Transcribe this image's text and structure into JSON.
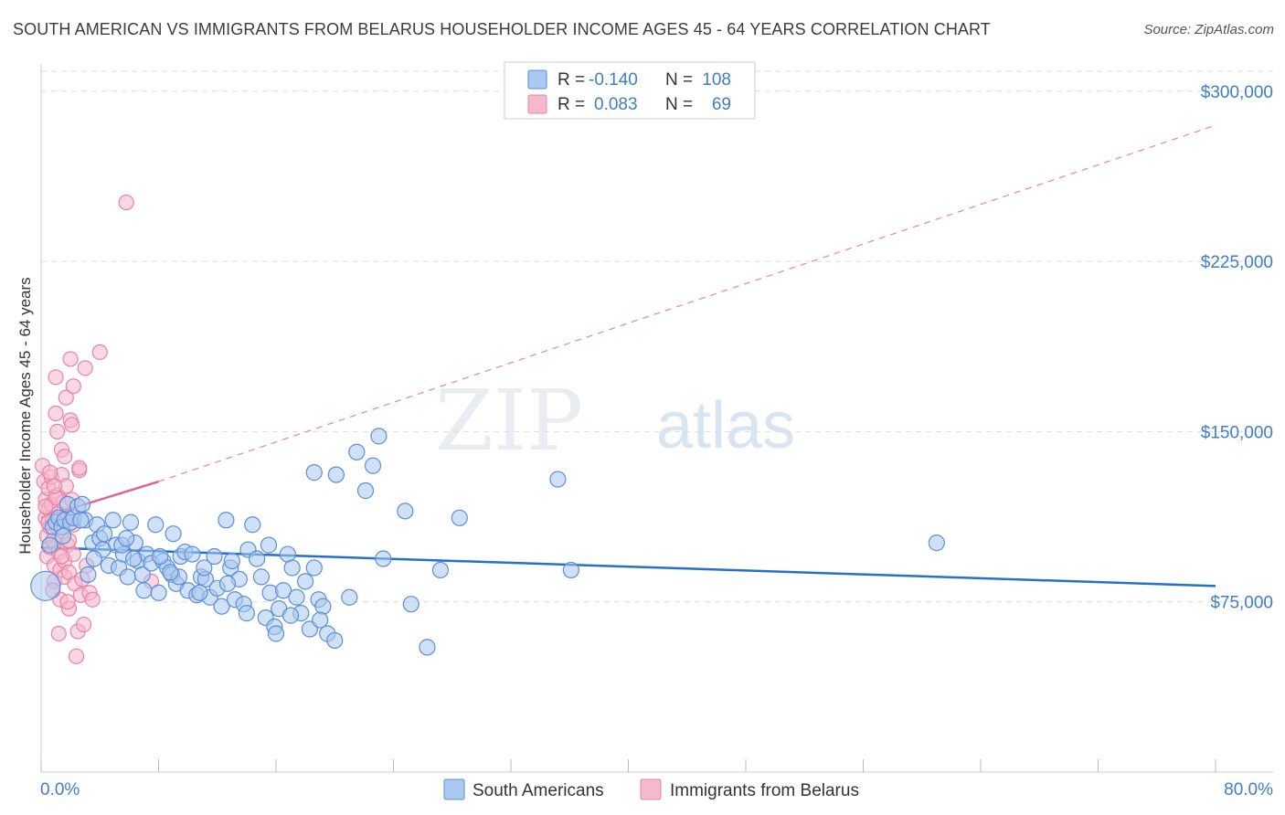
{
  "header": {
    "title": "SOUTH AMERICAN VS IMMIGRANTS FROM BELARUS HOUSEHOLDER INCOME AGES 45 - 64 YEARS CORRELATION CHART",
    "source": "Source: ZipAtlas.com"
  },
  "watermark": {
    "zip": "ZIP",
    "atlas": "atlas"
  },
  "colors": {
    "blue_fill": "#a9c8f0",
    "blue_stroke": "#5b8fd6",
    "blue_line": "#2470cc",
    "pink_fill": "#f5b8cc",
    "pink_stroke": "#e882a4",
    "pink_line": "#e2648e",
    "axis_text": "#3f7dc8",
    "grid": "#dddddd"
  },
  "legend": {
    "rows": [
      {
        "r_label": "R =",
        "r_value": "-0.140",
        "n_label": "N =",
        "n_value": "108"
      },
      {
        "r_label": "R =",
        "r_value": "0.083",
        "n_label": "N =",
        "n_value": "69"
      }
    ]
  },
  "chart_data": {
    "type": "scatter",
    "title": "SOUTH AMERICAN VS IMMIGRANTS FROM BELARUS HOUSEHOLDER INCOME AGES 45 - 64 YEARS CORRELATION CHART",
    "xlabel": "",
    "ylabel": "Householder Income Ages 45 - 64 years",
    "xlim": [
      0,
      80
    ],
    "ylim": [
      0,
      312000
    ],
    "x_tick_labels": [
      "0.0%",
      "80.0%"
    ],
    "y_ticks": [
      75000,
      150000,
      225000,
      300000
    ],
    "y_tick_labels": [
      "$75,000",
      "$150,000",
      "$225,000",
      "$300,000"
    ],
    "grid": true,
    "legend_position": "bottom",
    "series": [
      {
        "name": "South Americans",
        "r": -0.14,
        "n": 108,
        "trend": {
          "x": [
            0,
            80
          ],
          "y": [
            99000,
            82000
          ],
          "style": "solid"
        },
        "points": [
          [
            0.3,
            82000
          ],
          [
            0.6,
            100000
          ],
          [
            0.8,
            108000
          ],
          [
            1.0,
            110000
          ],
          [
            1.2,
            112000
          ],
          [
            1.4,
            108000
          ],
          [
            1.6,
            111000
          ],
          [
            1.8,
            118000
          ],
          [
            2.0,
            110000
          ],
          [
            2.2,
            112000
          ],
          [
            2.5,
            117000
          ],
          [
            2.8,
            118000
          ],
          [
            3.0,
            111000
          ],
          [
            3.2,
            87000
          ],
          [
            3.5,
            101000
          ],
          [
            3.8,
            109000
          ],
          [
            4.0,
            103000
          ],
          [
            4.3,
            105000
          ],
          [
            4.6,
            91000
          ],
          [
            4.9,
            111000
          ],
          [
            5.1,
            100000
          ],
          [
            5.3,
            90000
          ],
          [
            5.6,
            96000
          ],
          [
            5.9,
            86000
          ],
          [
            6.1,
            110000
          ],
          [
            6.4,
            101000
          ],
          [
            6.6,
            93000
          ],
          [
            6.9,
            87000
          ],
          [
            7.2,
            96000
          ],
          [
            7.5,
            92000
          ],
          [
            7.8,
            109000
          ],
          [
            8.0,
            79000
          ],
          [
            8.3,
            93000
          ],
          [
            8.6,
            90000
          ],
          [
            8.9,
            87000
          ],
          [
            9.2,
            83000
          ],
          [
            9.5,
            95000
          ],
          [
            9.8,
            97000
          ],
          [
            10.0,
            80000
          ],
          [
            10.3,
            96000
          ],
          [
            10.6,
            78000
          ],
          [
            10.9,
            86000
          ],
          [
            11.2,
            85000
          ],
          [
            11.5,
            77000
          ],
          [
            11.8,
            95000
          ],
          [
            12.0,
            81000
          ],
          [
            12.3,
            73000
          ],
          [
            12.6,
            111000
          ],
          [
            12.9,
            90000
          ],
          [
            13.2,
            76000
          ],
          [
            13.5,
            85000
          ],
          [
            13.8,
            74000
          ],
          [
            14.1,
            98000
          ],
          [
            14.4,
            109000
          ],
          [
            14.7,
            94000
          ],
          [
            15.0,
            86000
          ],
          [
            15.3,
            68000
          ],
          [
            15.6,
            79000
          ],
          [
            15.9,
            64000
          ],
          [
            16.2,
            72000
          ],
          [
            16.5,
            80000
          ],
          [
            16.8,
            96000
          ],
          [
            17.1,
            90000
          ],
          [
            17.4,
            77000
          ],
          [
            17.7,
            70000
          ],
          [
            18.0,
            84000
          ],
          [
            18.3,
            63000
          ],
          [
            18.6,
            90000
          ],
          [
            18.9,
            76000
          ],
          [
            19.2,
            73000
          ],
          [
            19.5,
            61000
          ],
          [
            20.1,
            131000
          ],
          [
            21.0,
            77000
          ],
          [
            21.5,
            141000
          ],
          [
            22.1,
            124000
          ],
          [
            23.3,
            94000
          ],
          [
            25.2,
            74000
          ],
          [
            26.3,
            55000
          ],
          [
            27.2,
            89000
          ],
          [
            28.5,
            112000
          ],
          [
            35.2,
            129000
          ],
          [
            36.1,
            89000
          ],
          [
            61.0,
            101000
          ],
          [
            4.2,
            98000
          ],
          [
            5.5,
            100000
          ],
          [
            6.3,
            94000
          ],
          [
            1.5,
            104000
          ],
          [
            2.7,
            111000
          ],
          [
            3.6,
            94000
          ],
          [
            7.0,
            80000
          ],
          [
            8.1,
            95000
          ],
          [
            9.0,
            105000
          ],
          [
            10.8,
            79000
          ],
          [
            12.7,
            83000
          ],
          [
            14.0,
            70000
          ],
          [
            16.0,
            61000
          ],
          [
            17.0,
            69000
          ],
          [
            18.6,
            132000
          ],
          [
            23.0,
            148000
          ],
          [
            24.8,
            115000
          ],
          [
            9.4,
            86000
          ],
          [
            11.1,
            90000
          ],
          [
            13.0,
            93000
          ],
          [
            15.5,
            100000
          ],
          [
            19.0,
            67000
          ],
          [
            20.0,
            58000
          ],
          [
            22.6,
            135000
          ],
          [
            8.8,
            88000
          ],
          [
            5.8,
            103000
          ]
        ]
      },
      {
        "name": "Immigrants from Belarus",
        "r": 0.083,
        "n": 69,
        "trend": {
          "x": [
            0,
            8
          ],
          "y": [
            112000,
            128000
          ],
          "style": "solid",
          "extended": {
            "x": [
              8,
              80
            ],
            "y": [
              128000,
              285000
            ],
            "style": "dashed"
          }
        },
        "points": [
          [
            0.1,
            135000
          ],
          [
            0.2,
            128000
          ],
          [
            0.3,
            120000
          ],
          [
            0.3,
            112000
          ],
          [
            0.4,
            104000
          ],
          [
            0.4,
            95000
          ],
          [
            0.5,
            125000
          ],
          [
            0.5,
            116000
          ],
          [
            0.6,
            108000
          ],
          [
            0.6,
            99000
          ],
          [
            0.7,
            130000
          ],
          [
            0.7,
            118000
          ],
          [
            0.8,
            111000
          ],
          [
            0.8,
            102000
          ],
          [
            0.9,
            91000
          ],
          [
            0.9,
            84000
          ],
          [
            1.0,
            174000
          ],
          [
            1.0,
            158000
          ],
          [
            1.1,
            150000
          ],
          [
            1.1,
            122000
          ],
          [
            1.2,
            114000
          ],
          [
            1.2,
            97000
          ],
          [
            1.3,
            89000
          ],
          [
            1.3,
            76000
          ],
          [
            1.4,
            142000
          ],
          [
            1.4,
            131000
          ],
          [
            1.5,
            119000
          ],
          [
            1.5,
            106000
          ],
          [
            1.6,
            93000
          ],
          [
            1.6,
            86000
          ],
          [
            1.7,
            165000
          ],
          [
            1.7,
            126000
          ],
          [
            1.8,
            112000
          ],
          [
            1.8,
            100000
          ],
          [
            1.9,
            88000
          ],
          [
            1.9,
            72000
          ],
          [
            2.0,
            182000
          ],
          [
            2.0,
            155000
          ],
          [
            2.1,
            153000
          ],
          [
            2.1,
            120000
          ],
          [
            2.2,
            109000
          ],
          [
            2.2,
            96000
          ],
          [
            2.3,
            83000
          ],
          [
            2.4,
            51000
          ],
          [
            2.5,
            62000
          ],
          [
            2.6,
            133000
          ],
          [
            2.7,
            78000
          ],
          [
            2.8,
            85000
          ],
          [
            2.9,
            65000
          ],
          [
            3.0,
            178000
          ],
          [
            3.1,
            91000
          ],
          [
            3.3,
            79000
          ],
          [
            3.5,
            76000
          ],
          [
            4.0,
            185000
          ],
          [
            5.8,
            251000
          ],
          [
            7.5,
            84000
          ],
          [
            1.2,
            61000
          ],
          [
            0.8,
            80000
          ],
          [
            1.6,
            139000
          ],
          [
            1.0,
            121000
          ],
          [
            0.5,
            110000
          ],
          [
            1.9,
            102000
          ],
          [
            2.2,
            170000
          ],
          [
            0.6,
            132000
          ],
          [
            1.4,
            95000
          ],
          [
            0.3,
            117000
          ],
          [
            2.6,
            134000
          ],
          [
            1.8,
            75000
          ],
          [
            0.9,
            126000
          ]
        ]
      }
    ]
  },
  "bottom_legend": {
    "items": [
      "South Americans",
      "Immigrants from Belarus"
    ]
  }
}
